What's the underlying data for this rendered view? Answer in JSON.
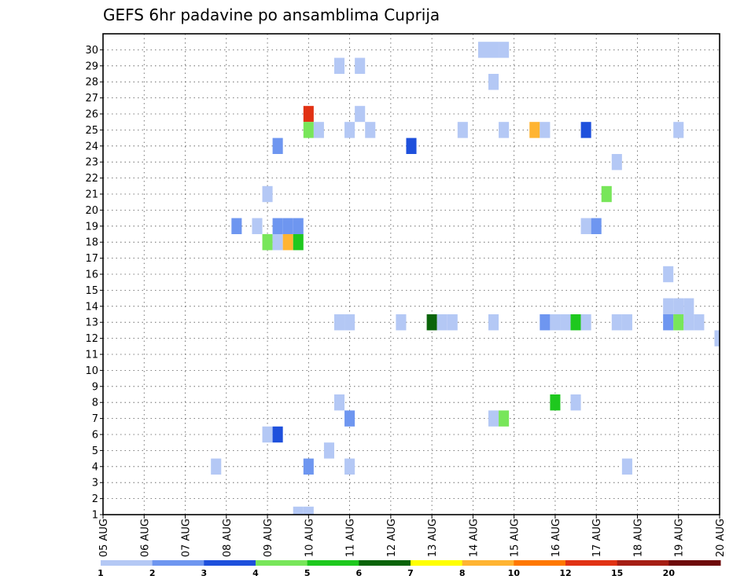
{
  "chart_data": {
    "type": "heatmap",
    "title": "GEFS 6hr padavine po ansamblima Cuprija",
    "xlabel": "",
    "ylabel": "",
    "x_unit": "days from 05 AUG 00Z",
    "xlim": [
      0,
      15
    ],
    "ylim": [
      0,
      30
    ],
    "x_ticks": [
      {
        "x": 0,
        "label": "05 AUG"
      },
      {
        "x": 1,
        "label": "06 AUG"
      },
      {
        "x": 2,
        "label": "07 AUG"
      },
      {
        "x": 3,
        "label": "08 AUG"
      },
      {
        "x": 4,
        "label": "09 AUG"
      },
      {
        "x": 5,
        "label": "10 AUG"
      },
      {
        "x": 6,
        "label": "11 AUG"
      },
      {
        "x": 7,
        "label": "12 AUG"
      },
      {
        "x": 8,
        "label": "13 AUG"
      },
      {
        "x": 9,
        "label": "14 AUG"
      },
      {
        "x": 10,
        "label": "15 AUG"
      },
      {
        "x": 11,
        "label": "16 AUG"
      },
      {
        "x": 12,
        "label": "17 AUG"
      },
      {
        "x": 13,
        "label": "18 AUG"
      },
      {
        "x": 14,
        "label": "19 AUG"
      },
      {
        "x": 15,
        "label": "20 AUG"
      }
    ],
    "y_ticks": [
      1,
      2,
      3,
      4,
      5,
      6,
      7,
      8,
      9,
      10,
      11,
      12,
      13,
      14,
      15,
      16,
      17,
      18,
      19,
      20,
      21,
      22,
      23,
      24,
      25,
      26,
      27,
      28,
      29,
      30
    ],
    "grid": true,
    "colorbar": {
      "levels": [
        "1",
        "2",
        "3",
        "4",
        "5",
        "6",
        "7",
        "8",
        "10",
        "12",
        "15",
        "20"
      ],
      "colors": [
        "#b4c8f5",
        "#6e96f0",
        "#1e50dc",
        "#78e65a",
        "#1ec81e",
        "#0a640a",
        "#ffff00",
        "#ffb432",
        "#ff7800",
        "#e13214",
        "#a51e14",
        "#6e0a0a"
      ]
    },
    "cells": [
      {
        "x": 9.25,
        "y": 30,
        "c": 0
      },
      {
        "x": 9.5,
        "y": 30,
        "c": 0
      },
      {
        "x": 9.75,
        "y": 30,
        "c": 0
      },
      {
        "x": 5.75,
        "y": 29,
        "c": 0
      },
      {
        "x": 6.25,
        "y": 29,
        "c": 0
      },
      {
        "x": 9.5,
        "y": 28,
        "c": 0
      },
      {
        "x": 5,
        "y": 26,
        "c": 9
      },
      {
        "x": 6.25,
        "y": 26,
        "c": 0
      },
      {
        "x": 5,
        "y": 25,
        "c": 3
      },
      {
        "x": 5.25,
        "y": 25,
        "c": 0
      },
      {
        "x": 6,
        "y": 25,
        "c": 0
      },
      {
        "x": 6.5,
        "y": 25,
        "c": 0
      },
      {
        "x": 8.75,
        "y": 25,
        "c": 0
      },
      {
        "x": 9.75,
        "y": 25,
        "c": 0
      },
      {
        "x": 10.5,
        "y": 25,
        "c": 7
      },
      {
        "x": 10.75,
        "y": 25,
        "c": 0
      },
      {
        "x": 11.75,
        "y": 25,
        "c": 2
      },
      {
        "x": 14,
        "y": 25,
        "c": 0
      },
      {
        "x": 4.25,
        "y": 24,
        "c": 1
      },
      {
        "x": 7.5,
        "y": 24,
        "c": 2
      },
      {
        "x": 12.5,
        "y": 23,
        "c": 0
      },
      {
        "x": 4,
        "y": 21,
        "c": 0
      },
      {
        "x": 12.25,
        "y": 21,
        "c": 3
      },
      {
        "x": 3.25,
        "y": 19,
        "c": 1
      },
      {
        "x": 3.75,
        "y": 19,
        "c": 0
      },
      {
        "x": 4.25,
        "y": 19,
        "c": 1
      },
      {
        "x": 4.5,
        "y": 19,
        "c": 1
      },
      {
        "x": 4.75,
        "y": 19,
        "c": 1
      },
      {
        "x": 11.75,
        "y": 19,
        "c": 0
      },
      {
        "x": 12,
        "y": 19,
        "c": 1
      },
      {
        "x": 4,
        "y": 18,
        "c": 3
      },
      {
        "x": 4.25,
        "y": 18,
        "c": 0
      },
      {
        "x": 4.5,
        "y": 18,
        "c": 7
      },
      {
        "x": 4.75,
        "y": 18,
        "c": 4
      },
      {
        "x": 13.75,
        "y": 16,
        "c": 0
      },
      {
        "x": 13.75,
        "y": 14,
        "c": 0
      },
      {
        "x": 14,
        "y": 14,
        "c": 0
      },
      {
        "x": 14.25,
        "y": 14,
        "c": 0
      },
      {
        "x": 5.75,
        "y": 13,
        "c": 0
      },
      {
        "x": 6,
        "y": 13,
        "c": 0
      },
      {
        "x": 7.25,
        "y": 13,
        "c": 0
      },
      {
        "x": 8,
        "y": 13,
        "c": 5
      },
      {
        "x": 8.25,
        "y": 13,
        "c": 0
      },
      {
        "x": 8.5,
        "y": 13,
        "c": 0
      },
      {
        "x": 9.5,
        "y": 13,
        "c": 0
      },
      {
        "x": 10.75,
        "y": 13,
        "c": 1
      },
      {
        "x": 11,
        "y": 13,
        "c": 0
      },
      {
        "x": 11.25,
        "y": 13,
        "c": 0
      },
      {
        "x": 11.5,
        "y": 13,
        "c": 4
      },
      {
        "x": 11.75,
        "y": 13,
        "c": 0
      },
      {
        "x": 12.5,
        "y": 13,
        "c": 0
      },
      {
        "x": 12.75,
        "y": 13,
        "c": 0
      },
      {
        "x": 13.75,
        "y": 13,
        "c": 1
      },
      {
        "x": 14,
        "y": 13,
        "c": 3
      },
      {
        "x": 14.25,
        "y": 13,
        "c": 0
      },
      {
        "x": 14.5,
        "y": 13,
        "c": 0
      },
      {
        "x": 15,
        "y": 12,
        "c": 0
      },
      {
        "x": 5.75,
        "y": 8,
        "c": 0
      },
      {
        "x": 11,
        "y": 8,
        "c": 4
      },
      {
        "x": 11.5,
        "y": 8,
        "c": 0
      },
      {
        "x": 6,
        "y": 7,
        "c": 1
      },
      {
        "x": 9.5,
        "y": 7,
        "c": 0
      },
      {
        "x": 9.75,
        "y": 7,
        "c": 3
      },
      {
        "x": 4,
        "y": 6,
        "c": 0
      },
      {
        "x": 4.25,
        "y": 6,
        "c": 2
      },
      {
        "x": 5.5,
        "y": 5,
        "c": 0
      },
      {
        "x": 2.75,
        "y": 4,
        "c": 0
      },
      {
        "x": 5,
        "y": 4,
        "c": 1
      },
      {
        "x": 6,
        "y": 4,
        "c": 0
      },
      {
        "x": 12.75,
        "y": 4,
        "c": 0
      },
      {
        "x": 4.75,
        "y": 1,
        "c": 0
      },
      {
        "x": 5,
        "y": 1,
        "c": 0
      }
    ]
  }
}
